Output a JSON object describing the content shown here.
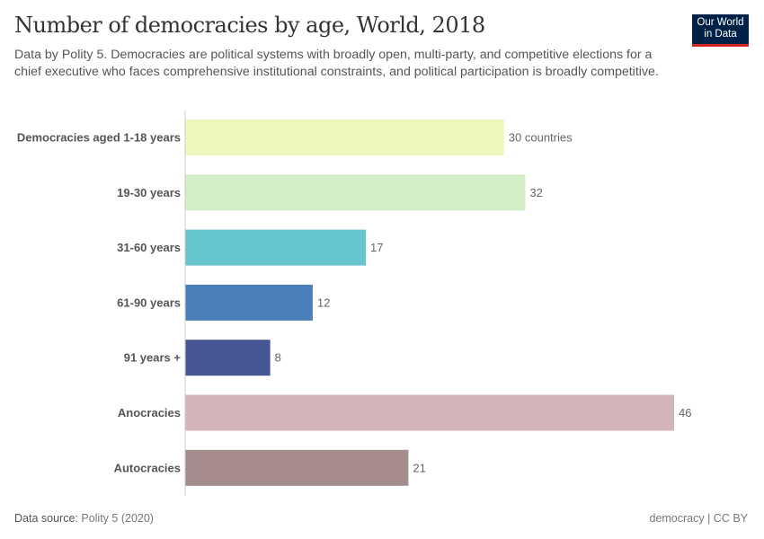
{
  "header": {
    "title": "Number of democracies by age, World, 2018",
    "subtitle": "Data by Polity 5. Democracies are political systems with broadly open, multi-party, and competitive elections for a chief executive who faces comprehensive institutional constraints, and political participation is broadly competitive.",
    "logo": "Our World in Data"
  },
  "footer": {
    "source_label": "Data source:",
    "source": "Polity 5 (2020)",
    "license": "democracy | CC BY"
  },
  "chart_data": {
    "type": "bar",
    "orientation": "horizontal",
    "categories": [
      "Democracies aged 1-18 years",
      "19-30 years",
      "31-60 years",
      "61-90 years",
      "91 years +",
      "Anocracies",
      "Autocracies"
    ],
    "values": [
      30,
      32,
      17,
      12,
      8,
      46,
      21
    ],
    "value_labels": [
      "30 countries",
      "32",
      "17",
      "12",
      "8",
      "46",
      "21"
    ],
    "colors": [
      "#eff7bd",
      "#d3edc6",
      "#67c5cf",
      "#4b7fbb",
      "#465593",
      "#d3b4b8",
      "#a48b8c"
    ],
    "xlim": [
      0,
      46
    ],
    "grid": false
  }
}
